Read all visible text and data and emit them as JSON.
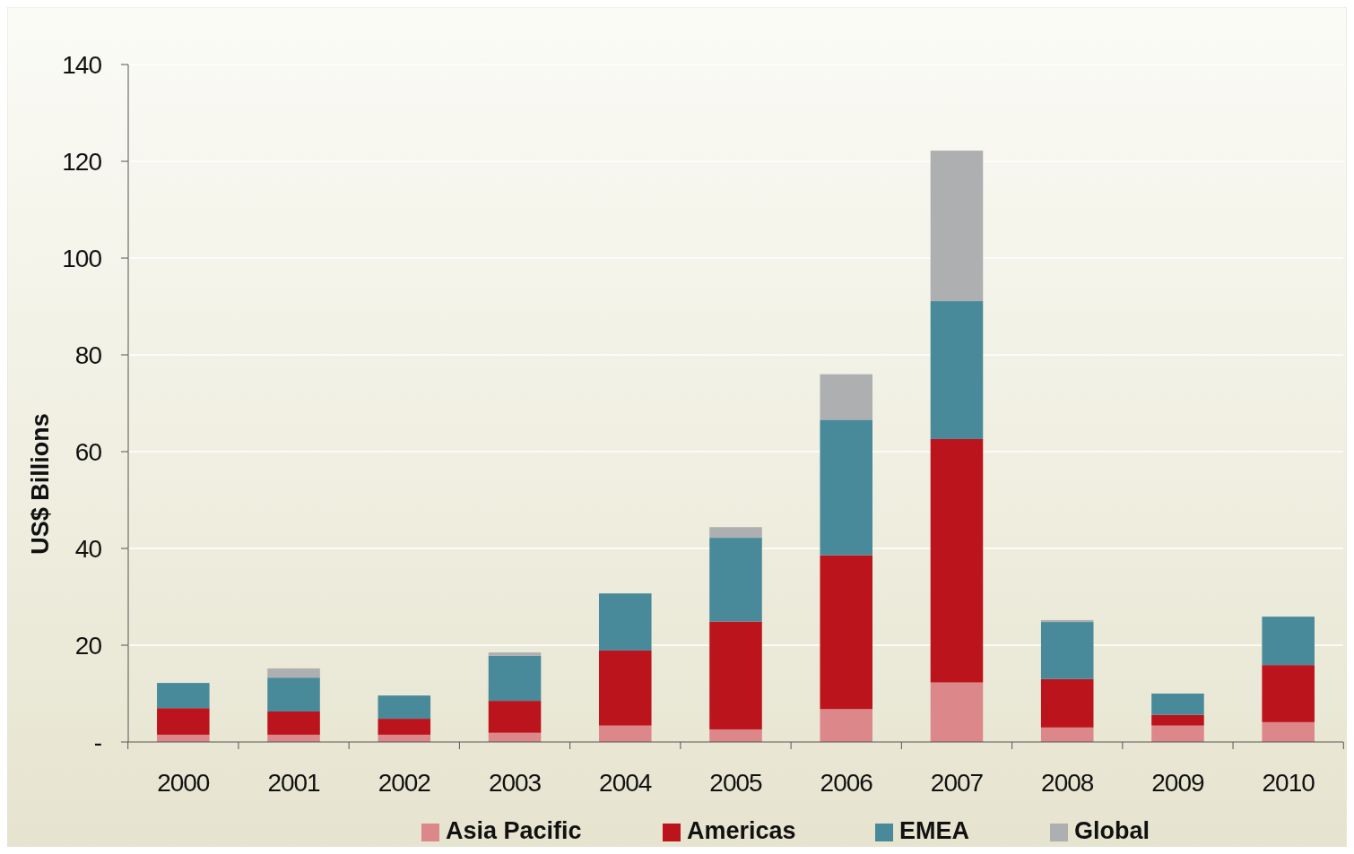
{
  "chart_data": {
    "type": "bar",
    "stacked": true,
    "ylabel": "US$ Billions",
    "categories": [
      "2000",
      "2001",
      "2002",
      "2003",
      "2004",
      "2005",
      "2006",
      "2007",
      "2008",
      "2009",
      "2010"
    ],
    "series": [
      {
        "name": "Asia Pacific",
        "color": "#dc878a",
        "values": [
          1.5,
          1.5,
          1.5,
          1.9,
          3.4,
          2.6,
          6.8,
          12.3,
          3.0,
          3.4,
          4.1
        ]
      },
      {
        "name": "Americas",
        "color": "#bc141d",
        "values": [
          5.5,
          4.8,
          3.3,
          6.6,
          15.5,
          22.3,
          31.8,
          50.3,
          10.0,
          2.2,
          11.8
        ]
      },
      {
        "name": "EMEA",
        "color": "#488a9a",
        "values": [
          5.2,
          7.0,
          4.8,
          9.3,
          11.8,
          17.3,
          28.0,
          28.5,
          11.8,
          4.4,
          10.0
        ]
      },
      {
        "name": "Global",
        "color": "#aeafb1",
        "values": [
          0,
          1.9,
          0,
          0.7,
          0,
          2.2,
          9.4,
          31.1,
          0.4,
          0,
          0
        ]
      }
    ],
    "ylim": [
      0,
      140
    ],
    "yticks": [
      {
        "value": 0,
        "label": "-"
      },
      20,
      40,
      60,
      80,
      100,
      120,
      140
    ],
    "grid": "y",
    "legend": "bottom"
  }
}
